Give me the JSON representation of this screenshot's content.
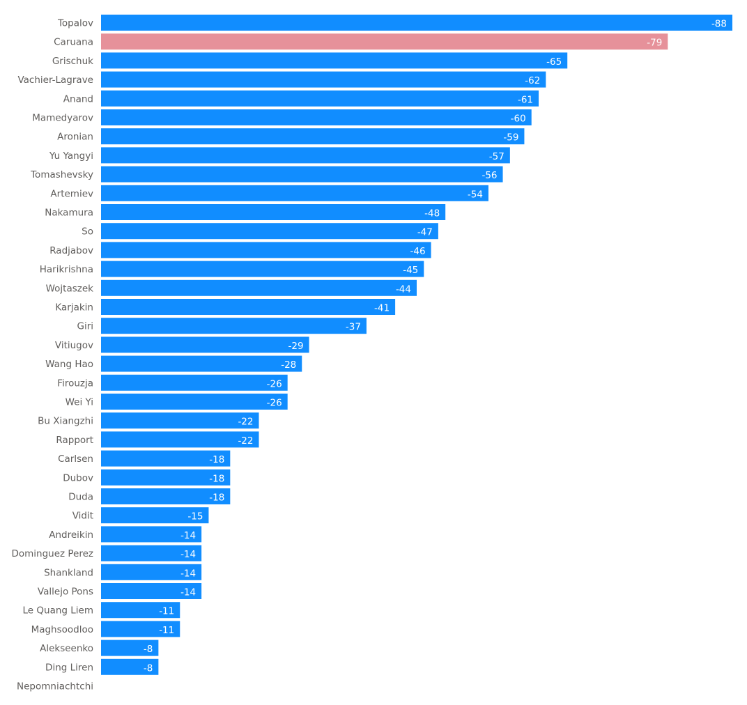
{
  "chart_data": {
    "type": "bar",
    "orientation": "horizontal",
    "title": "",
    "xlabel": "",
    "ylabel": "",
    "categories": [
      "Topalov",
      "Caruana",
      "Grischuk",
      "Vachier-Lagrave",
      "Anand",
      "Mamedyarov",
      "Aronian",
      "Yu Yangyi",
      "Tomashevsky",
      "Artemiev",
      "Nakamura",
      "So",
      "Radjabov",
      "Harikrishna",
      "Wojtaszek",
      "Karjakin",
      "Giri",
      "Vitiugov",
      "Wang Hao",
      "Firouzja",
      "Wei Yi",
      "Bu Xiangzhi",
      "Rapport",
      "Carlsen",
      "Dubov",
      "Duda",
      "Vidit",
      "Andreikin",
      "Dominguez Perez",
      "Shankland",
      "Vallejo Pons",
      "Le Quang Liem",
      "Maghsoodloo",
      "Alekseenko",
      "Ding Liren",
      "Nepomniachtchi"
    ],
    "values": [
      -88,
      -79,
      -65,
      -62,
      -61,
      -60,
      -59,
      -57,
      -56,
      -54,
      -48,
      -47,
      -46,
      -45,
      -44,
      -41,
      -37,
      -29,
      -28,
      -26,
      -26,
      -22,
      -22,
      -18,
      -18,
      -18,
      -15,
      -14,
      -14,
      -14,
      -14,
      -11,
      -11,
      -8,
      -8,
      0
    ],
    "highlight": "Caruana",
    "xlim": [
      0,
      -88
    ],
    "grid": false,
    "legend": "none",
    "colors": {
      "default": "#118DFF",
      "highlight": "#E6919A"
    }
  }
}
